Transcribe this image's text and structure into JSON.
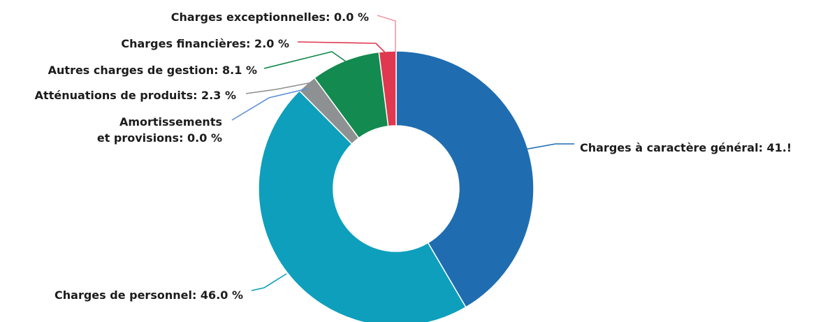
{
  "chart_data": {
    "type": "pie",
    "variant": "donut",
    "title": "",
    "slices": [
      {
        "label": "Charges à caractère général",
        "value": 41.5,
        "color": "#1f6db0",
        "display": "Charges à caractère général: 41.!"
      },
      {
        "label": "Charges de personnel",
        "value": 46.0,
        "color": "#0e9fbd",
        "display": "Charges de personnel: 46.0 %"
      },
      {
        "label": "Amortissements et provisions",
        "value": 0.0,
        "color": "#5b8fd6",
        "display": [
          "Amortissements",
          "et provisions: 0.0 %"
        ]
      },
      {
        "label": "Atténuations de produits",
        "value": 2.3,
        "color": "#8e9191",
        "display": "Atténuations de produits: 2.3 %"
      },
      {
        "label": "Autres charges de gestion",
        "value": 8.1,
        "color": "#138a4f",
        "display": "Autres charges de gestion: 8.1 %"
      },
      {
        "label": "Charges financières",
        "value": 2.0,
        "color": "#e0384f",
        "display": "Charges financières: 2.0 %"
      },
      {
        "label": "Charges exceptionnelles",
        "value": 0.0,
        "color": "#f09aa6",
        "display": "Charges exceptionnelles: 0.0 %"
      }
    ]
  }
}
